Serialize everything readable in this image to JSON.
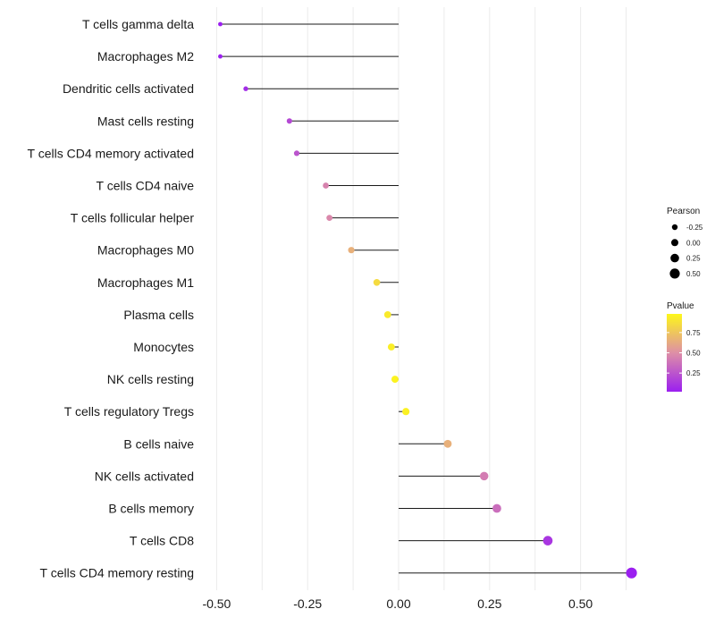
{
  "chart_data": {
    "type": "lollipop",
    "title": "",
    "xlabel": "",
    "ylabel": "",
    "xlim": [
      -0.5,
      0.65
    ],
    "xticks": [
      -0.5,
      -0.25,
      0.0,
      0.25,
      0.5
    ],
    "xtick_labels": [
      "-0.50",
      "-0.25",
      "0.00",
      "0.25",
      "0.50"
    ],
    "grid": true,
    "points": [
      {
        "label": "T cells gamma delta",
        "value": -0.49,
        "pvalue": 0.02
      },
      {
        "label": "Macrophages M2",
        "value": -0.49,
        "pvalue": 0.03
      },
      {
        "label": "Dendritic cells activated",
        "value": -0.42,
        "pvalue": 0.08
      },
      {
        "label": "Mast cells resting",
        "value": -0.3,
        "pvalue": 0.2
      },
      {
        "label": "T cells CD4 memory activated",
        "value": -0.28,
        "pvalue": 0.25
      },
      {
        "label": "T cells CD4 naive",
        "value": -0.2,
        "pvalue": 0.45
      },
      {
        "label": "T cells follicular helper",
        "value": -0.19,
        "pvalue": 0.47
      },
      {
        "label": "Macrophages M0",
        "value": -0.13,
        "pvalue": 0.65
      },
      {
        "label": "Macrophages M1",
        "value": -0.06,
        "pvalue": 0.85
      },
      {
        "label": "Plasma cells",
        "value": -0.03,
        "pvalue": 0.92
      },
      {
        "label": "Monocytes",
        "value": -0.02,
        "pvalue": 0.94
      },
      {
        "label": "NK cells resting",
        "value": -0.01,
        "pvalue": 0.96
      },
      {
        "label": "T cells regulatory  Tregs ",
        "value": 0.02,
        "pvalue": 0.95
      },
      {
        "label": "B cells naive",
        "value": 0.135,
        "pvalue": 0.65
      },
      {
        "label": "NK cells activated",
        "value": 0.235,
        "pvalue": 0.42
      },
      {
        "label": "B cells memory",
        "value": 0.27,
        "pvalue": 0.36
      },
      {
        "label": "T cells CD8",
        "value": 0.41,
        "pvalue": 0.12
      },
      {
        "label": "T cells CD4 memory resting",
        "value": 0.64,
        "pvalue": 0.02
      }
    ],
    "legend_size": {
      "title": "Pearson",
      "breaks": [
        -0.25,
        0.0,
        0.25,
        0.5
      ],
      "labels": [
        "-0.25",
        "0.00",
        "0.25",
        "0.50"
      ]
    },
    "legend_color": {
      "title": "Pvalue",
      "breaks": [
        0.25,
        0.5,
        0.75
      ],
      "labels": [
        "0.25",
        "0.50",
        "0.75"
      ],
      "range": [
        0.02,
        0.98
      ],
      "low_color": "#9b1ff0",
      "mid_color": "#de8fa6",
      "high_color": "#fdf71a"
    },
    "line_color": "#1a1a1a",
    "grid_color": "#ebebeb"
  }
}
